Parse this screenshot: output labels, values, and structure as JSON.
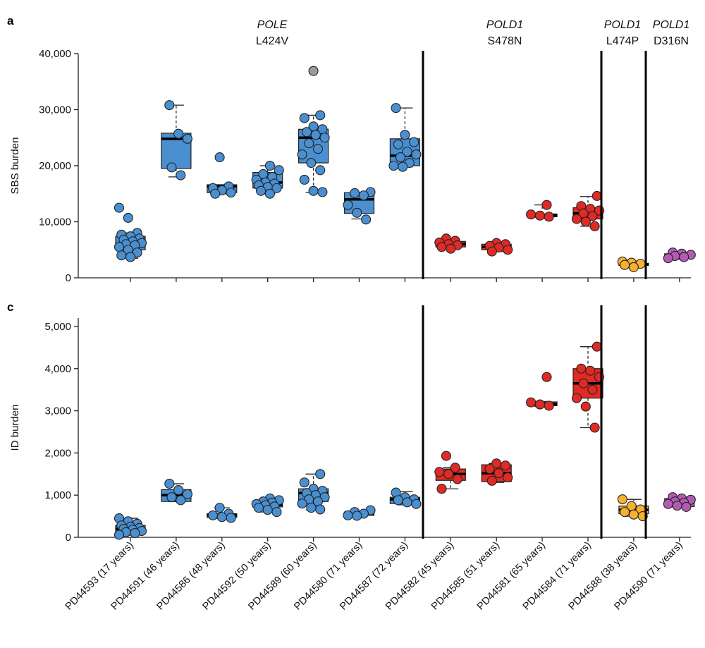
{
  "colors": {
    "POLE L424V": "#4a8fd0",
    "POLD1 S478N": "#e02a26",
    "POLD1 L474P": "#f7b12f",
    "POLD1 D316N": "#b25ab4",
    "outlier": "#9a9a9a"
  },
  "chart_data": {
    "type": "box",
    "categories": [
      "PD44593 (17 years)",
      "PD44591 (46 years)",
      "PD44586 (48 years)",
      "PD44592 (50 years)",
      "PD44589 (60 years)",
      "PD44580 (71 years)",
      "PD44587 (72 years)",
      "PD44582 (45 years)",
      "PD44585 (51 years)",
      "PD44581 (65 years)",
      "PD44584 (71 years)",
      "PD44588 (38 years)",
      "PD44590 (71 years)"
    ],
    "groups": [
      {
        "gene": "POLE",
        "mutation": "L424V",
        "indices": [
          0,
          1,
          2,
          3,
          4,
          5,
          6
        ]
      },
      {
        "gene": "POLD1",
        "mutation": "S478N",
        "indices": [
          7,
          8,
          9,
          10
        ]
      },
      {
        "gene": "POLD1",
        "mutation": "L474P",
        "indices": [
          11
        ]
      },
      {
        "gene": "POLD1",
        "mutation": "D316N",
        "indices": [
          12
        ]
      }
    ],
    "panels": [
      {
        "letter": "a",
        "ylabel": "SBS burden",
        "ylim": [
          0,
          40000
        ],
        "yticks": [
          "0",
          "10,000",
          "20,000",
          "30,000",
          "40,000"
        ],
        "ytick_values": [
          0,
          10000,
          20000,
          30000,
          40000
        ],
        "boxes": [
          {
            "q1": 5000,
            "median": 6000,
            "q3": 7400,
            "whisker_low": 3500,
            "whisker_high": 8000,
            "points": [
              12500,
              10700,
              8000,
              7700,
              7400,
              7000,
              6800,
              6500,
              6200,
              6000,
              5800,
              5500,
              5000,
              4500,
              4000,
              3700
            ],
            "outliers": []
          },
          {
            "q1": 19500,
            "median": 24800,
            "q3": 25800,
            "whisker_low": 18000,
            "whisker_high": 30800,
            "points": [
              30800,
              25700,
              24800,
              19700,
              18300
            ],
            "outliers": []
          },
          {
            "q1": 15200,
            "median": 16300,
            "q3": 16600,
            "whisker_low": 15000,
            "whisker_high": 16600,
            "points": [
              21500,
              16300,
              16000,
              15600,
              15200,
              15000
            ],
            "outliers": []
          },
          {
            "q1": 16000,
            "median": 17000,
            "q3": 18800,
            "whisker_low": 15000,
            "whisker_high": 20000,
            "points": [
              20000,
              19200,
              18500,
              18000,
              17500,
              17000,
              16800,
              16500,
              16200,
              16000,
              15500,
              15000
            ],
            "outliers": []
          },
          {
            "q1": 20500,
            "median": 25000,
            "q3": 26500,
            "whisker_low": 15200,
            "whisker_high": 29000,
            "points": [
              29000,
              28500,
              27000,
              26500,
              26000,
              25500,
              25000,
              24000,
              23000,
              22000,
              20500,
              19200,
              17500,
              15500,
              15300
            ],
            "outliers": [
              36900
            ]
          },
          {
            "q1": 11500,
            "median": 14000,
            "q3": 15200,
            "whisker_low": 10500,
            "whisker_high": 15200,
            "points": [
              15300,
              15100,
              14700,
              13000,
              11600,
              10400
            ],
            "outliers": []
          },
          {
            "q1": 20000,
            "median": 21800,
            "q3": 24800,
            "whisker_low": 19800,
            "whisker_high": 30300,
            "points": [
              30300,
              25500,
              24200,
              23800,
              22500,
              22000,
              21500,
              20500,
              20000,
              19800
            ],
            "outliers": []
          },
          {
            "q1": 5500,
            "median": 6000,
            "q3": 6500,
            "whisker_low": 5200,
            "whisker_high": 7000,
            "points": [
              7000,
              6600,
              6300,
              6000,
              5800,
              5500,
              5200
            ],
            "outliers": []
          },
          {
            "q1": 5000,
            "median": 5500,
            "q3": 6000,
            "whisker_low": 4700,
            "whisker_high": 6400,
            "points": [
              6200,
              6000,
              5700,
              5400,
              5000,
              4700
            ],
            "outliers": []
          },
          {
            "q1": 10900,
            "median": 11100,
            "q3": 11400,
            "whisker_low": 10800,
            "whisker_high": 13000,
            "points": [
              13000,
              11300,
              11100,
              10900
            ],
            "outliers": []
          },
          {
            "q1": 10500,
            "median": 11500,
            "q3": 12500,
            "whisker_low": 9200,
            "whisker_high": 14500,
            "points": [
              14600,
              12800,
              12300,
              12000,
              11500,
              11000,
              10500,
              10000,
              9200
            ],
            "outliers": []
          },
          {
            "q1": 2200,
            "median": 2400,
            "q3": 2600,
            "whisker_low": 1800,
            "whisker_high": 3000,
            "points": [
              2900,
              2700,
              2500,
              2300,
              1900
            ],
            "outliers": []
          },
          {
            "q1": 3700,
            "median": 4000,
            "q3": 4300,
            "whisker_low": 3300,
            "whisker_high": 4500,
            "points": [
              4500,
              4300,
              4100,
              3900,
              3700,
              3500
            ],
            "outliers": []
          }
        ]
      },
      {
        "letter": "c",
        "ylabel": "ID burden",
        "ylim": [
          0,
          5200
        ],
        "yticks": [
          "0",
          "1,000",
          "2,000",
          "3,000",
          "4,000",
          "5,000"
        ],
        "ytick_values": [
          0,
          1000,
          2000,
          3000,
          4000,
          5000
        ],
        "boxes": [
          {
            "q1": 130,
            "median": 200,
            "q3": 280,
            "whisker_low": 50,
            "whisker_high": 450,
            "points": [
              450,
              380,
              320,
              280,
              250,
              220,
              200,
              180,
              150,
              120,
              100,
              60
            ],
            "outliers": []
          },
          {
            "q1": 850,
            "median": 1000,
            "q3": 1130,
            "whisker_low": 850,
            "whisker_high": 1270,
            "points": [
              1270,
              1120,
              1020,
              950,
              880
            ],
            "outliers": []
          },
          {
            "q1": 470,
            "median": 520,
            "q3": 560,
            "whisker_low": 450,
            "whisker_high": 700,
            "points": [
              700,
              560,
              520,
              480,
              460
            ],
            "outliers": []
          },
          {
            "q1": 720,
            "median": 770,
            "q3": 860,
            "whisker_low": 600,
            "whisker_high": 920,
            "points": [
              920,
              880,
              850,
              820,
              790,
              760,
              730,
              700,
              650,
              600
            ],
            "outliers": []
          },
          {
            "q1": 850,
            "median": 1050,
            "q3": 1150,
            "whisker_low": 650,
            "whisker_high": 1500,
            "points": [
              1500,
              1300,
              1150,
              1100,
              1050,
              1000,
              950,
              900,
              850,
              800,
              700,
              660
            ],
            "outliers": []
          },
          {
            "q1": 520,
            "median": 560,
            "q3": 600,
            "whisker_low": 500,
            "whisker_high": 620,
            "points": [
              640,
              600,
              560,
              520,
              510
            ],
            "outliers": []
          },
          {
            "q1": 800,
            "median": 900,
            "q3": 950,
            "whisker_low": 770,
            "whisker_high": 1080,
            "points": [
              1060,
              950,
              900,
              880,
              830,
              790
            ],
            "outliers": []
          },
          {
            "q1": 1350,
            "median": 1500,
            "q3": 1620,
            "whisker_low": 1150,
            "whisker_high": 1650,
            "points": [
              1930,
              1650,
              1550,
              1500,
              1380,
              1150
            ],
            "outliers": []
          },
          {
            "q1": 1320,
            "median": 1520,
            "q3": 1720,
            "whisker_low": 1300,
            "whisker_high": 1750,
            "points": [
              1750,
              1700,
              1620,
              1520,
              1420,
              1340
            ],
            "outliers": []
          },
          {
            "q1": 3120,
            "median": 3160,
            "q3": 3210,
            "whisker_low": 3100,
            "whisker_high": 3220,
            "points": [
              3800,
              3200,
              3150,
              3120
            ],
            "outliers": []
          },
          {
            "q1": 3300,
            "median": 3650,
            "q3": 4000,
            "whisker_low": 2600,
            "whisker_high": 4520,
            "points": [
              4520,
              4000,
              3950,
              3800,
              3650,
              3500,
              3300,
              3100,
              2600
            ],
            "outliers": []
          },
          {
            "q1": 560,
            "median": 650,
            "q3": 740,
            "whisker_low": 500,
            "whisker_high": 900,
            "points": [
              900,
              740,
              660,
              600,
              540,
              500
            ],
            "outliers": []
          },
          {
            "q1": 730,
            "median": 820,
            "q3": 920,
            "whisker_low": 720,
            "whisker_high": 950,
            "points": [
              950,
              920,
              890,
              850,
              820,
              790,
              750,
              720
            ],
            "outliers": []
          }
        ]
      }
    ]
  }
}
